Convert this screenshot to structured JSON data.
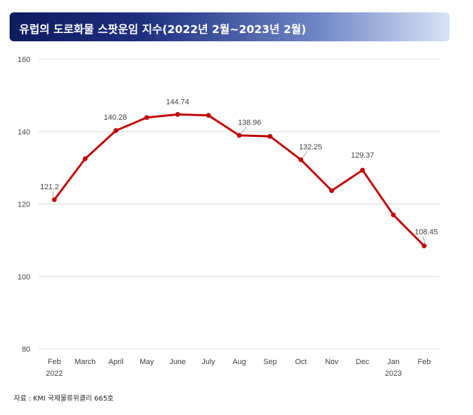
{
  "title": "유럽의 도로화물 스팟운임 지수(2022년 2월~2023년 2월)",
  "source_text": "자료 : KMI 국제물류위클리 665호",
  "colors": {
    "series": "#c00000",
    "grid": "#d9d9d9",
    "axis_text": "#404040"
  },
  "chart_data": {
    "type": "line",
    "title": "유럽의 도로화물 스팟운임 지수(2022년 2월~2023년 2월)",
    "xlabel": "",
    "ylabel": "",
    "ylim": [
      80,
      160
    ],
    "yticks": [
      80,
      100,
      120,
      140,
      160
    ],
    "grid": true,
    "legend": "none",
    "categories": [
      "Feb",
      "March",
      "April",
      "May",
      "June",
      "July",
      "Aug",
      "Sep",
      "Oct",
      "Nov",
      "Dec",
      "Jan",
      "Feb"
    ],
    "sub_categories": [
      "2022",
      "",
      "",
      "",
      "",
      "",
      "",
      "",
      "",
      "",
      "",
      "2023",
      ""
    ],
    "series": [
      {
        "values": [
          121.2,
          132.5,
          140.28,
          143.9,
          144.74,
          144.5,
          138.96,
          138.7,
          132.25,
          123.7,
          129.37,
          117.0,
          108.45
        ]
      }
    ],
    "data_labels": [
      {
        "index": 0,
        "text": "121.2"
      },
      {
        "index": 2,
        "text": "140.28"
      },
      {
        "index": 4,
        "text": "144.74"
      },
      {
        "index": 6,
        "text": "138.96"
      },
      {
        "index": 8,
        "text": "132.25"
      },
      {
        "index": 10,
        "text": "129.37"
      },
      {
        "index": 12,
        "text": "108.45"
      }
    ]
  }
}
